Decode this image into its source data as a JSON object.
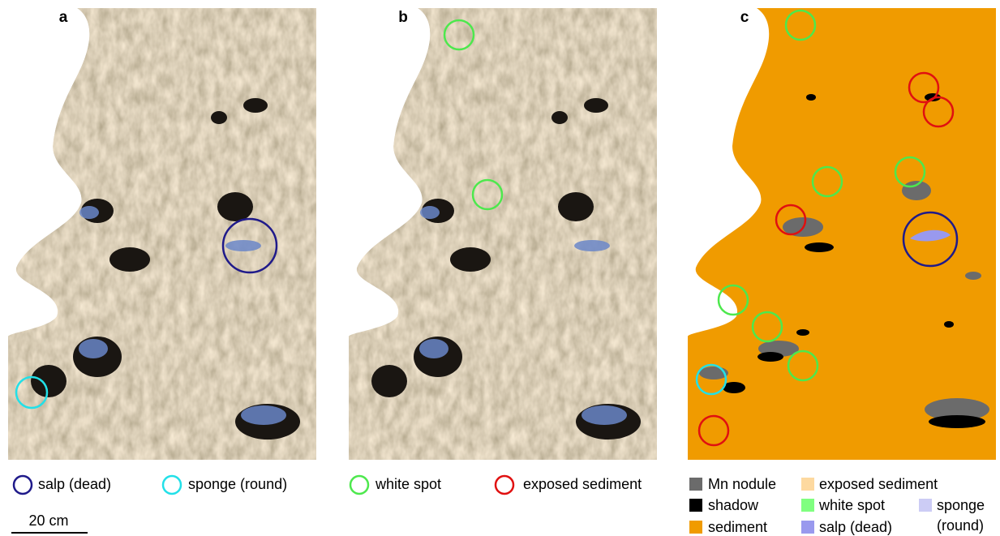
{
  "panels": [
    {
      "label": "a"
    },
    {
      "label": "b"
    },
    {
      "label": "c"
    }
  ],
  "legend_a": [
    {
      "label": "salp (dead)"
    },
    {
      "label": "sponge (round)"
    }
  ],
  "legend_b": [
    {
      "label": "white spot"
    },
    {
      "label": "exposed sediment"
    }
  ],
  "legend_c": [
    {
      "label": "Mn nodule"
    },
    {
      "label": "shadow"
    },
    {
      "label": "sediment"
    },
    {
      "label": "exposed sediment"
    },
    {
      "label": "white spot"
    },
    {
      "label": "salp (dead)"
    },
    {
      "label_lines": [
        "sponge",
        "(round)"
      ]
    }
  ],
  "scale_bar": {
    "label": "20 cm"
  }
}
